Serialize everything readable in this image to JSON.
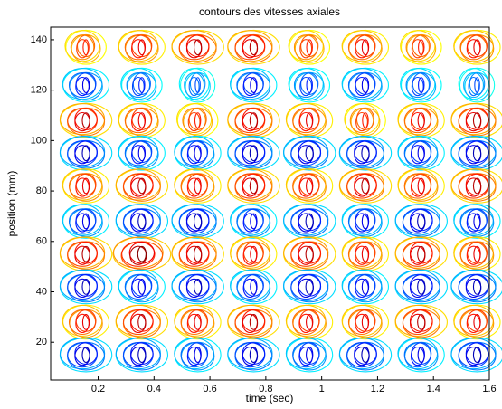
{
  "chart_data": {
    "type": "contour",
    "title": "contours des vitesses axiales",
    "x_label": "time (sec)",
    "y_label": "position (mm)",
    "x": [
      0.15,
      0.35,
      0.55,
      0.75,
      0.95,
      1.15,
      1.35,
      1.55
    ],
    "y": [
      137,
      122,
      108,
      95,
      82,
      68,
      55,
      42,
      28,
      15
    ],
    "z": [
      [
        0.7,
        0.8,
        0.9,
        0.9,
        0.7,
        0.8,
        0.7,
        0.8
      ],
      [
        -0.8,
        -0.7,
        -0.6,
        -0.8,
        -0.7,
        -0.8,
        -0.7,
        -0.6
      ],
      [
        0.9,
        0.8,
        0.7,
        0.9,
        0.8,
        0.7,
        0.8,
        0.9
      ],
      [
        -0.9,
        -0.8,
        -0.8,
        -0.9,
        -0.9,
        -0.9,
        -0.8,
        -0.9
      ],
      [
        0.8,
        0.9,
        0.8,
        0.9,
        0.8,
        0.9,
        0.8,
        0.9
      ],
      [
        -0.8,
        -0.9,
        -0.9,
        -0.8,
        -0.9,
        -0.8,
        -0.9,
        -0.8
      ],
      [
        0.9,
        1.0,
        0.9,
        0.8,
        0.9,
        0.8,
        0.9,
        0.8
      ],
      [
        -0.9,
        -0.8,
        -0.9,
        -0.8,
        -0.9,
        -0.8,
        -0.9,
        -0.9
      ],
      [
        0.8,
        0.9,
        0.8,
        0.9,
        0.8,
        0.8,
        0.9,
        0.8
      ],
      [
        -0.9,
        -0.9,
        -0.8,
        -0.9,
        -0.8,
        -0.9,
        -0.8,
        -0.9
      ]
    ],
    "colormap": "jet",
    "xlim": [
      0.03,
      1.6
    ],
    "ylim": [
      5,
      145
    ],
    "xticks": [
      0.2,
      0.4,
      0.6,
      0.8,
      1,
      1.2,
      1.4,
      1.6
    ],
    "yticks": [
      20,
      40,
      60,
      80,
      100,
      120,
      140
    ]
  }
}
